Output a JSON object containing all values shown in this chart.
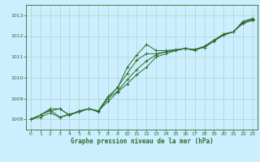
{
  "title": "Graphe pression niveau de la mer (hPa)",
  "background_color": "#cceeff",
  "plot_bg_color": "#cceeff",
  "grid_color": "#aaccbb",
  "line_color": "#2d6e2d",
  "xlim": [
    -0.5,
    23.5
  ],
  "ylim": [
    1007.5,
    1013.5
  ],
  "xticks": [
    0,
    1,
    2,
    3,
    4,
    5,
    6,
    7,
    8,
    9,
    10,
    11,
    12,
    13,
    14,
    15,
    16,
    17,
    18,
    19,
    20,
    21,
    22,
    23
  ],
  "yticks": [
    1008,
    1009,
    1010,
    1011,
    1012,
    1013
  ],
  "series": [
    [
      1008.0,
      1008.2,
      1008.5,
      1008.5,
      1008.2,
      1008.4,
      1008.5,
      1008.4,
      1009.1,
      1009.5,
      1010.5,
      1011.1,
      1011.6,
      1011.3,
      1011.3,
      1011.35,
      1011.4,
      1011.3,
      1011.5,
      1011.8,
      1012.1,
      1012.2,
      1012.7,
      1012.8
    ],
    [
      1008.0,
      1008.1,
      1008.3,
      1008.1,
      1008.2,
      1008.4,
      1008.5,
      1008.4,
      1009.0,
      1009.35,
      1009.9,
      1010.4,
      1010.8,
      1011.1,
      1011.25,
      1011.3,
      1011.4,
      1011.35,
      1011.5,
      1011.8,
      1012.1,
      1012.2,
      1012.7,
      1012.85
    ],
    [
      1008.0,
      1008.2,
      1008.4,
      1008.5,
      1008.2,
      1008.35,
      1008.5,
      1008.35,
      1009.0,
      1009.55,
      1010.2,
      1010.85,
      1011.15,
      1011.15,
      1011.25,
      1011.3,
      1011.4,
      1011.35,
      1011.5,
      1011.8,
      1012.05,
      1012.2,
      1012.65,
      1012.8
    ],
    [
      1008.0,
      1008.2,
      1008.45,
      1008.1,
      1008.25,
      1008.35,
      1008.5,
      1008.4,
      1008.85,
      1009.3,
      1009.7,
      1010.15,
      1010.5,
      1011.0,
      1011.15,
      1011.3,
      1011.4,
      1011.35,
      1011.45,
      1011.75,
      1012.05,
      1012.2,
      1012.6,
      1012.75
    ]
  ]
}
